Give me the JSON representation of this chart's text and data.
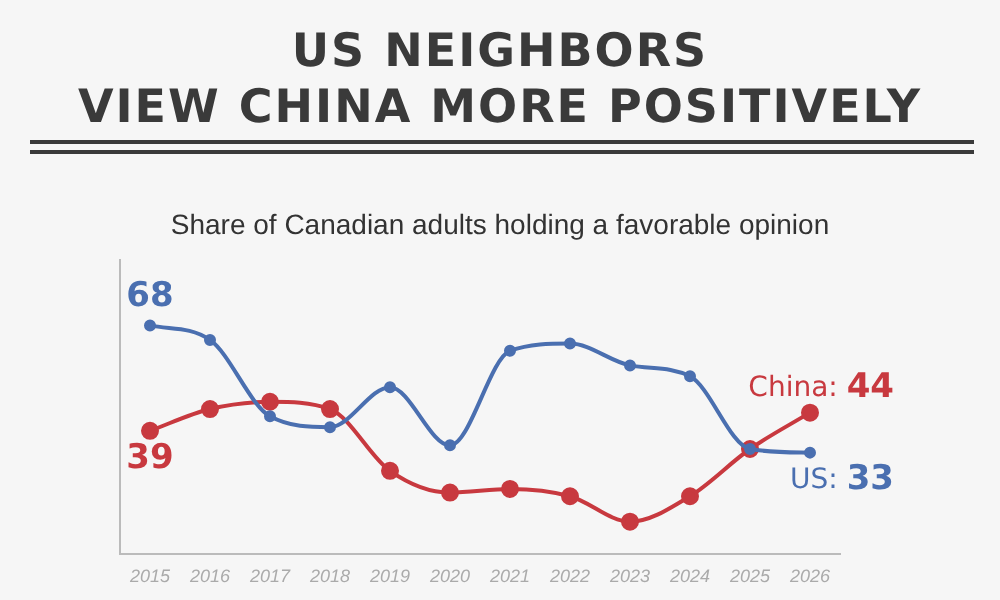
{
  "chart_data": {
    "type": "line",
    "title": "US NEIGHBORS\nVIEW CHINA MORE POSITIVELY",
    "subtitle": "Share of Canadian adults holding a favorable opinion",
    "categories": [
      "2015",
      "2016",
      "2017",
      "2018",
      "2019",
      "2020",
      "2021",
      "2022",
      "2023",
      "2024",
      "2025",
      "2026"
    ],
    "series": [
      {
        "color": "#4a6fb0",
        "values": [
          68,
          64,
          43,
          40,
          51,
          35,
          61,
          63,
          57,
          54,
          34,
          33
        ],
        "value_labels": [
          "68",
          null,
          null,
          null,
          null,
          null,
          null,
          null,
          null,
          null,
          null,
          "US: 33"
        ]
      },
      {
        "color": "#c8393f",
        "values": [
          39,
          45,
          47,
          45,
          28,
          22,
          23,
          21,
          14,
          21,
          34,
          44
        ],
        "value_labels": [
          "39",
          null,
          null,
          null,
          null,
          null,
          null,
          null,
          null,
          null,
          null,
          "China: 44"
        ]
      }
    ],
    "ylim": [
      5,
      86
    ],
    "tick_labels": "x",
    "grid": false,
    "legend": false,
    "marker": "circle",
    "line_style": "solid"
  }
}
